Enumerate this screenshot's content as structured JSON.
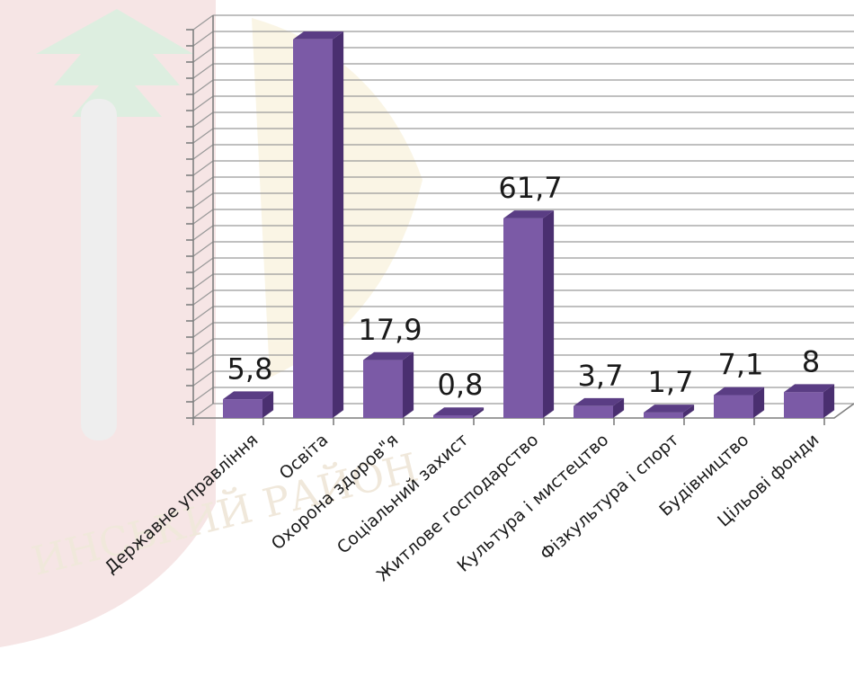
{
  "chart_data": {
    "type": "bar",
    "categories": [
      "Державне управління",
      "Освіта",
      "Охорона здоров\"я",
      "Соціальний захист",
      "Житлове господарство",
      "Культура і мистецтво",
      "Фізкультура і спорт",
      "Будівництво",
      "Цільові фонди"
    ],
    "values": [
      5.8,
      117,
      17.9,
      0.8,
      61.7,
      3.7,
      1.7,
      7.1,
      8
    ],
    "data_labels": [
      "5,8",
      "",
      "17,9",
      "0,8",
      "61,7",
      "3,7",
      "1,7",
      "7,1",
      "8"
    ],
    "ylim": [
      0,
      120
    ],
    "grid": true,
    "bar_color": "#7b5aa6",
    "bar_top_color": "#5a3d84",
    "bar_side_color": "#4a2f70",
    "style": "3d"
  }
}
